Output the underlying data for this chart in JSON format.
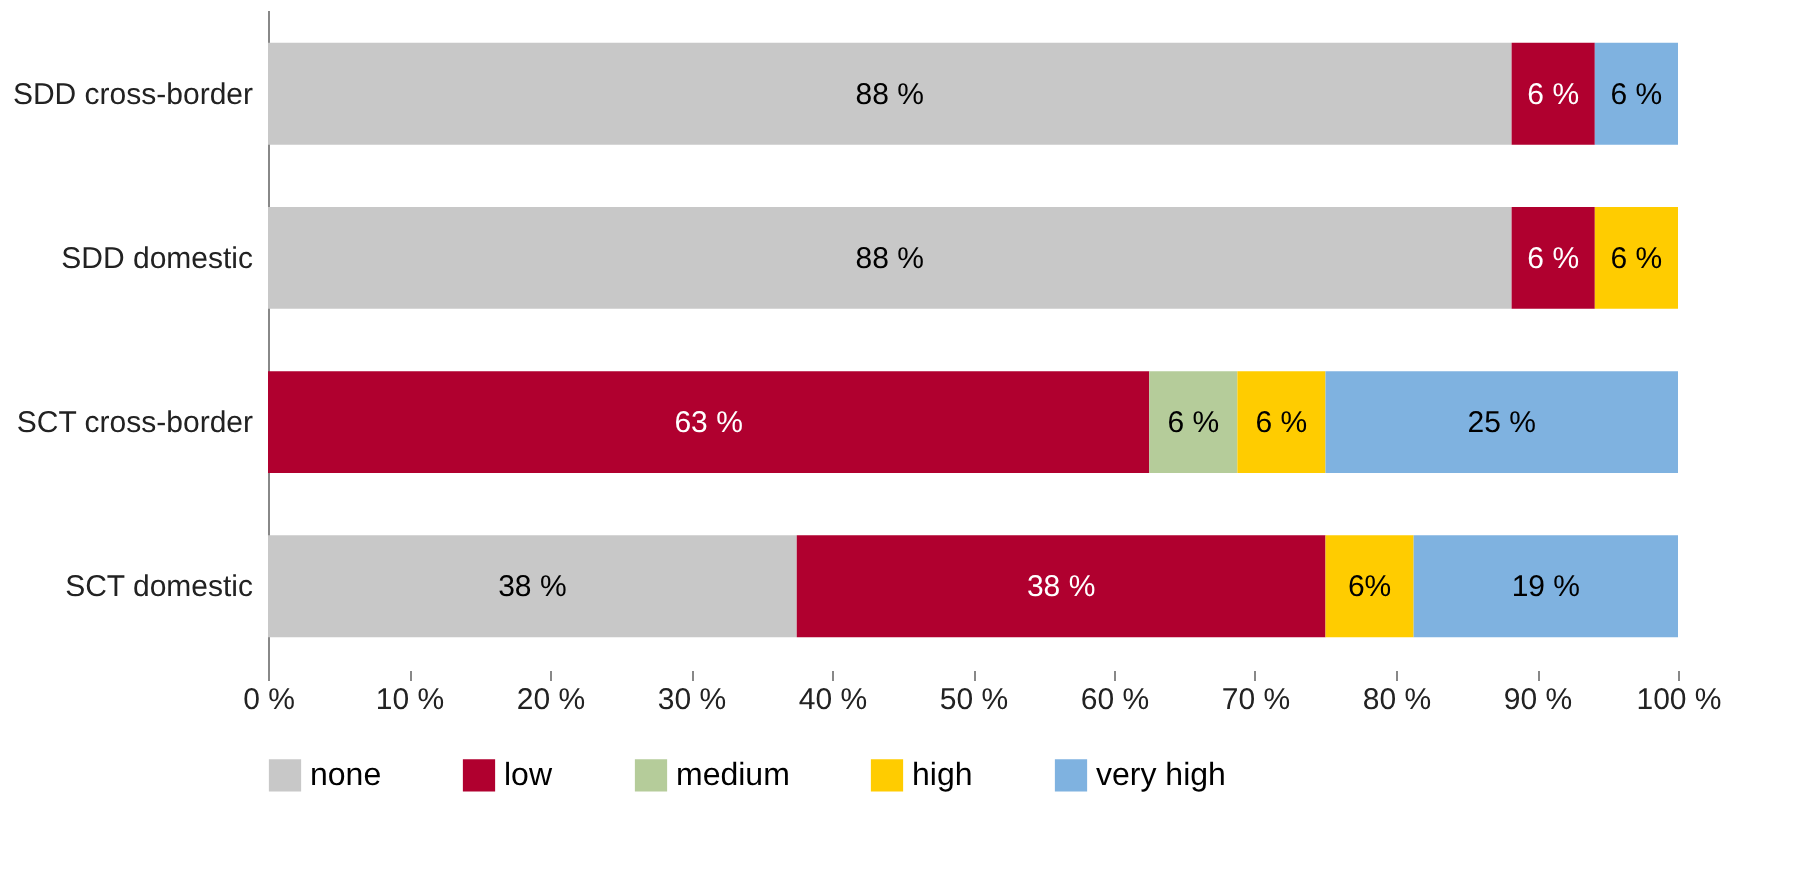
{
  "chart_data": {
    "type": "bar",
    "orientation": "horizontal",
    "stacked": true,
    "categories": [
      "SDD cross-border",
      "SDD domestic",
      "SCT cross-border",
      "SCT domestic"
    ],
    "series": [
      {
        "name": "none",
        "color": "#c8c8c8",
        "values": [
          88.2,
          88.2,
          null,
          37.5
        ],
        "value_labels": [
          "88 %",
          "88 %",
          null,
          "38 %"
        ]
      },
      {
        "name": "low",
        "color": "#b0002f",
        "values": [
          5.9,
          5.9,
          62.5,
          37.5
        ],
        "value_labels": [
          "6 %",
          "6 %",
          "63 %",
          "38 %"
        ]
      },
      {
        "name": "medium",
        "color": "#b5cc9a",
        "values": [
          null,
          null,
          6.25,
          null
        ],
        "value_labels": [
          null,
          null,
          "6 %",
          null
        ]
      },
      {
        "name": "high",
        "color": "#ffcc00",
        "values": [
          null,
          5.9,
          6.25,
          6.25
        ],
        "value_labels": [
          null,
          "6 %",
          "6 %",
          "6%"
        ]
      },
      {
        "name": "very high",
        "color": "#7fb2e0",
        "values": [
          5.9,
          null,
          25,
          18.75
        ],
        "value_labels": [
          "6 %",
          null,
          "25 %",
          "19 %"
        ]
      }
    ],
    "xlim": [
      0,
      100
    ],
    "xticks": [
      {
        "value": 0,
        "label": "0 %"
      },
      {
        "value": 10,
        "label": "10 %"
      },
      {
        "value": 20,
        "label": "20 %"
      },
      {
        "value": 30,
        "label": "30 %"
      },
      {
        "value": 40,
        "label": "40 %"
      },
      {
        "value": 50,
        "label": "50 %"
      },
      {
        "value": 60,
        "label": "60 %"
      },
      {
        "value": 70,
        "label": "70 %"
      },
      {
        "value": 80,
        "label": "80 %"
      },
      {
        "value": 90,
        "label": "90 %"
      },
      {
        "value": 100,
        "label": "100 %"
      }
    ],
    "grid": false,
    "legend": "bottom"
  }
}
